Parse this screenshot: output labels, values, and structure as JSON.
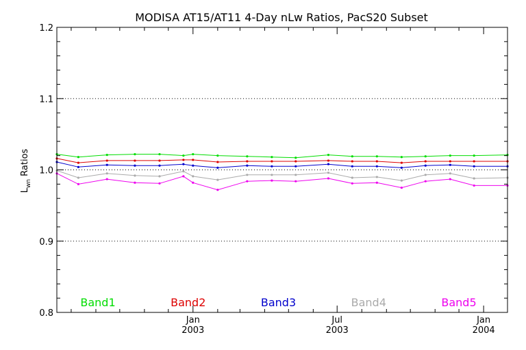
{
  "chart_data": {
    "type": "line",
    "title": "MODISA AT15/AT11 4-Day nLw Ratios, PacS20 Subset",
    "ylabel_main": "L",
    "ylabel_sub": "wn",
    "ylabel_rest": " Ratios",
    "xlabel": "",
    "ylim": [
      0.8,
      1.2
    ],
    "y_ticks": [
      0.8,
      0.9,
      1.0,
      1.1,
      1.2
    ],
    "y_tick_labels": [
      "0.8",
      "0.9",
      "1.0",
      "1.1",
      "1.2"
    ],
    "y_minor_step": 0.02,
    "grid_y": [
      0.9,
      1.0,
      1.1
    ],
    "x_range": [
      "2002-07-14",
      "2004-01-31"
    ],
    "x_ticks": [
      {
        "date": "2003-01-01",
        "line1": "Jan",
        "line2": "2003"
      },
      {
        "date": "2003-07-01",
        "line1": "Jul",
        "line2": "2003"
      },
      {
        "date": "2004-01-01",
        "line1": "Jan",
        "line2": "2004"
      }
    ],
    "x_minor_ticks": [
      "2002-08-01",
      "2002-09-01",
      "2002-10-01",
      "2002-11-01",
      "2002-12-01",
      "2003-02-01",
      "2003-03-01",
      "2003-04-01",
      "2003-05-01",
      "2003-06-01",
      "2003-08-01",
      "2003-09-01",
      "2003-10-01",
      "2003-11-01",
      "2003-12-01"
    ],
    "x": [
      "2002-07-14",
      "2002-08-10",
      "2002-09-15",
      "2002-10-20",
      "2002-11-20",
      "2002-12-20",
      "2003-01-01",
      "2003-02-01",
      "2003-03-10",
      "2003-04-10",
      "2003-05-10",
      "2003-06-20",
      "2003-07-20",
      "2003-08-20",
      "2003-09-20",
      "2003-10-20",
      "2003-11-20",
      "2003-12-20",
      "2004-01-31"
    ],
    "series": [
      {
        "name": "Band1",
        "color": "#00dd00",
        "values": [
          1.022,
          1.018,
          1.021,
          1.022,
          1.022,
          1.02,
          1.022,
          1.02,
          1.019,
          1.018,
          1.017,
          1.021,
          1.019,
          1.019,
          1.018,
          1.019,
          1.02,
          1.02,
          1.021
        ]
      },
      {
        "name": "Band2",
        "color": "#dd0000",
        "values": [
          1.016,
          1.01,
          1.013,
          1.013,
          1.013,
          1.014,
          1.014,
          1.011,
          1.012,
          1.012,
          1.012,
          1.013,
          1.012,
          1.012,
          1.01,
          1.012,
          1.012,
          1.012,
          1.012
        ]
      },
      {
        "name": "Band3",
        "color": "#0000cc",
        "values": [
          1.011,
          1.004,
          1.007,
          1.006,
          1.006,
          1.008,
          1.006,
          1.003,
          1.006,
          1.005,
          1.005,
          1.008,
          1.005,
          1.005,
          1.003,
          1.006,
          1.007,
          1.005,
          1.005
        ]
      },
      {
        "name": "Band4",
        "color": "#aaaaaa",
        "values": [
          0.999,
          0.989,
          0.995,
          0.992,
          0.991,
          0.998,
          0.991,
          0.986,
          0.993,
          0.993,
          0.993,
          0.996,
          0.989,
          0.99,
          0.985,
          0.993,
          0.995,
          0.988,
          0.989
        ]
      },
      {
        "name": "Band5",
        "color": "#ee00ee",
        "values": [
          0.995,
          0.98,
          0.987,
          0.982,
          0.981,
          0.991,
          0.982,
          0.972,
          0.984,
          0.985,
          0.984,
          0.988,
          0.981,
          0.982,
          0.975,
          0.984,
          0.987,
          0.978,
          0.978
        ]
      }
    ]
  }
}
